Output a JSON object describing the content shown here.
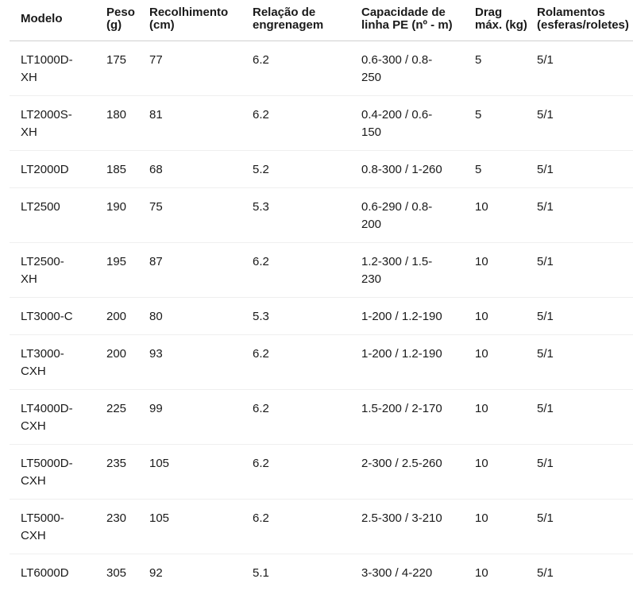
{
  "chart_data": {
    "type": "table",
    "title": "",
    "columns": [
      {
        "key": "modelo",
        "label": "Modelo"
      },
      {
        "key": "peso",
        "label": "Peso (g)"
      },
      {
        "key": "recolhimento",
        "label": "Recolhimento (cm)"
      },
      {
        "key": "relacao",
        "label": "Relação de engrenagem"
      },
      {
        "key": "capacidade",
        "label": "Capacidade de linha PE (nº - m)"
      },
      {
        "key": "drag",
        "label": "Drag máx. (kg)"
      },
      {
        "key": "rolamentos",
        "label": "Rolamentos (esferas/roletes)"
      }
    ],
    "rows": [
      [
        "LT1000D-XH",
        "175",
        "77",
        "6.2",
        "0.6-300 / 0.8-250",
        "5",
        "5/1"
      ],
      [
        "LT2000S-XH",
        "180",
        "81",
        "6.2",
        "0.4-200 / 0.6-150",
        "5",
        "5/1"
      ],
      [
        "LT2000D",
        "185",
        "68",
        "5.2",
        "0.8-300 / 1-260",
        "5",
        "5/1"
      ],
      [
        "LT2500",
        "190",
        "75",
        "5.3",
        "0.6-290 / 0.8-200",
        "10",
        "5/1"
      ],
      [
        "LT2500-XH",
        "195",
        "87",
        "6.2",
        "1.2-300 / 1.5-230",
        "10",
        "5/1"
      ],
      [
        "LT3000-C",
        "200",
        "80",
        "5.3",
        "1-200 / 1.2-190",
        "10",
        "5/1"
      ],
      [
        "LT3000-CXH",
        "200",
        "93",
        "6.2",
        "1-200 / 1.2-190",
        "10",
        "5/1"
      ],
      [
        "LT4000D-CXH",
        "225",
        "99",
        "6.2",
        "1.5-200 / 2-170",
        "10",
        "5/1"
      ],
      [
        "LT5000D-CXH",
        "235",
        "105",
        "6.2",
        "2-300 / 2.5-260",
        "10",
        "5/1"
      ],
      [
        "LT5000-CXH",
        "230",
        "105",
        "6.2",
        "2.5-300 / 3-210",
        "10",
        "5/1"
      ],
      [
        "LT6000D",
        "305",
        "92",
        "5.1",
        "3-300 / 4-220",
        "10",
        "5/1"
      ]
    ]
  },
  "colors": {
    "text": "#1a1a1a",
    "background": "#ffffff",
    "header_divider": "#d0d0d0",
    "row_divider": "#efefef"
  }
}
